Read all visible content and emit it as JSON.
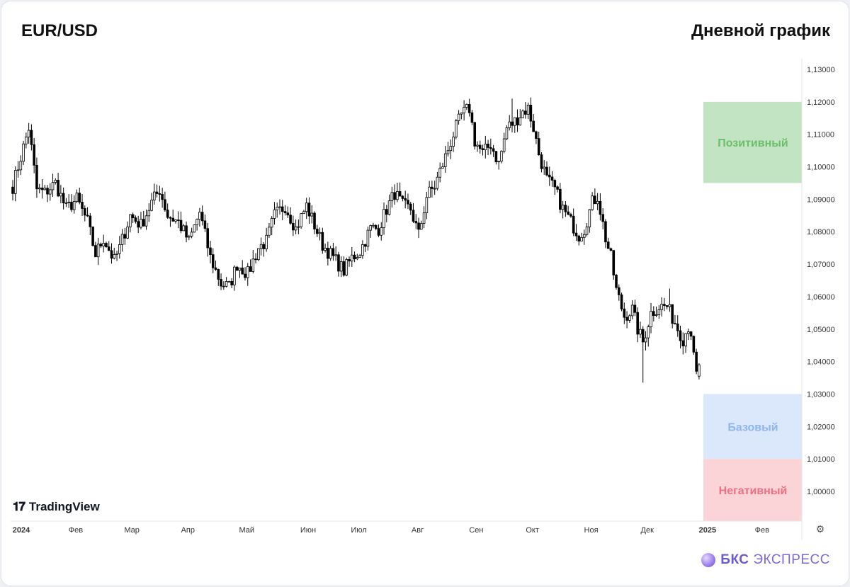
{
  "header": {
    "symbol": "EUR/USD",
    "timeframe": "Дневной график"
  },
  "watermark": {
    "text": "TradingView",
    "icon": "tradingview-logo"
  },
  "brand": {
    "prefix": "БКС",
    "name": "ЭКСПРЕСС",
    "icon": "bks-orb"
  },
  "settings_icon": "gear-icon",
  "chart_data": {
    "type": "candlestick",
    "y_ticks": [
      "1,13000",
      "1,12000",
      "1,11000",
      "1,10000",
      "1,09000",
      "1,08000",
      "1,07000",
      "1,06000",
      "1,05000",
      "1,04000",
      "1,03000",
      "1,02000",
      "1,01000",
      "1,00000"
    ],
    "y_tick_values": [
      1.13,
      1.12,
      1.11,
      1.1,
      1.09,
      1.08,
      1.07,
      1.06,
      1.05,
      1.04,
      1.03,
      1.02,
      1.01,
      1.0
    ],
    "ylim": [
      0.9905,
      1.1335
    ],
    "x_ticks": [
      {
        "label": "2024",
        "bold": true,
        "t": 0
      },
      {
        "label": "Фев",
        "t": 22
      },
      {
        "label": "Мар",
        "t": 43
      },
      {
        "label": "Апр",
        "t": 64
      },
      {
        "label": "Май",
        "t": 86
      },
      {
        "label": "Июн",
        "t": 109
      },
      {
        "label": "Июл",
        "t": 128
      },
      {
        "label": "Авг",
        "t": 150
      },
      {
        "label": "Сен",
        "t": 172
      },
      {
        "label": "Окт",
        "t": 193
      },
      {
        "label": "Ноя",
        "t": 215
      },
      {
        "label": "Дек",
        "t": 236
      },
      {
        "label": "2025",
        "bold": true,
        "t": 257
      },
      {
        "label": "Фев",
        "t": 279
      }
    ],
    "scenarios": [
      {
        "label": "Позитивный",
        "from": 1.095,
        "to": 1.12,
        "fill": "#c3e4c3",
        "text_color": "#6abf6a"
      },
      {
        "label": "Базовый",
        "from": 1.01,
        "to": 1.03,
        "fill": "#dbe8fb",
        "text_color": "#8db6ee"
      },
      {
        "label": "Негативный",
        "from": 0.9905,
        "to": 1.01,
        "fill": "#fbd4d8",
        "text_color": "#ef7080"
      }
    ],
    "anchors": [
      [
        0,
        1.094
      ],
      [
        4,
        1.106
      ],
      [
        6,
        1.112
      ],
      [
        9,
        1.093
      ],
      [
        12,
        1.092
      ],
      [
        16,
        1.095
      ],
      [
        20,
        1.087
      ],
      [
        24,
        1.09
      ],
      [
        28,
        1.083
      ],
      [
        31,
        1.073
      ],
      [
        34,
        1.078
      ],
      [
        38,
        1.071
      ],
      [
        40,
        1.075
      ],
      [
        44,
        1.085
      ],
      [
        48,
        1.082
      ],
      [
        52,
        1.089
      ],
      [
        55,
        1.093
      ],
      [
        58,
        1.085
      ],
      [
        62,
        1.083
      ],
      [
        66,
        1.077
      ],
      [
        70,
        1.086
      ],
      [
        74,
        1.072
      ],
      [
        78,
        1.064
      ],
      [
        81,
        1.063
      ],
      [
        84,
        1.07
      ],
      [
        88,
        1.067
      ],
      [
        92,
        1.075
      ],
      [
        95,
        1.077
      ],
      [
        98,
        1.085
      ],
      [
        102,
        1.088
      ],
      [
        106,
        1.081
      ],
      [
        110,
        1.088
      ],
      [
        113,
        1.082
      ],
      [
        116,
        1.076
      ],
      [
        120,
        1.072
      ],
      [
        124,
        1.068
      ],
      [
        127,
        1.072
      ],
      [
        130,
        1.074
      ],
      [
        134,
        1.081
      ],
      [
        137,
        1.081
      ],
      [
        140,
        1.087
      ],
      [
        143,
        1.092
      ],
      [
        146,
        1.088
      ],
      [
        149,
        1.087
      ],
      [
        152,
        1.079
      ],
      [
        155,
        1.091
      ],
      [
        158,
        1.094
      ],
      [
        162,
        1.103
      ],
      [
        165,
        1.11
      ],
      [
        168,
        1.116
      ],
      [
        171,
        1.118
      ],
      [
        173,
        1.108
      ],
      [
        176,
        1.104
      ],
      [
        179,
        1.107
      ],
      [
        182,
        1.101
      ],
      [
        185,
        1.112
      ],
      [
        188,
        1.114
      ],
      [
        191,
        1.117
      ],
      [
        193,
        1.118
      ],
      [
        195,
        1.112
      ],
      [
        197,
        1.104
      ],
      [
        200,
        1.096
      ],
      [
        203,
        1.093
      ],
      [
        206,
        1.087
      ],
      [
        209,
        1.083
      ],
      [
        212,
        1.079
      ],
      [
        214,
        1.081
      ],
      [
        217,
        1.089
      ],
      [
        219,
        1.091
      ],
      [
        222,
        1.078
      ],
      [
        224,
        1.072
      ],
      [
        226,
        1.062
      ],
      [
        229,
        1.054
      ],
      [
        232,
        1.056
      ],
      [
        234,
        1.05
      ],
      [
        236,
        1.046
      ],
      [
        239,
        1.055
      ],
      [
        242,
        1.057
      ],
      [
        245,
        1.057
      ],
      [
        248,
        1.052
      ],
      [
        251,
        1.047
      ],
      [
        253,
        1.051
      ],
      [
        254,
        1.049
      ],
      [
        255,
        1.041
      ],
      [
        256,
        1.037
      ]
    ],
    "last_bar": {
      "t": 257,
      "open": 1.0355,
      "high": 1.0395,
      "low": 1.0345,
      "close": 1.039
    },
    "notable_wicks": [
      {
        "t": 6,
        "high": 1.1135
      },
      {
        "t": 187,
        "high": 1.121
      },
      {
        "t": 236,
        "low": 1.0335
      },
      {
        "t": 246,
        "high": 1.0625
      }
    ]
  }
}
